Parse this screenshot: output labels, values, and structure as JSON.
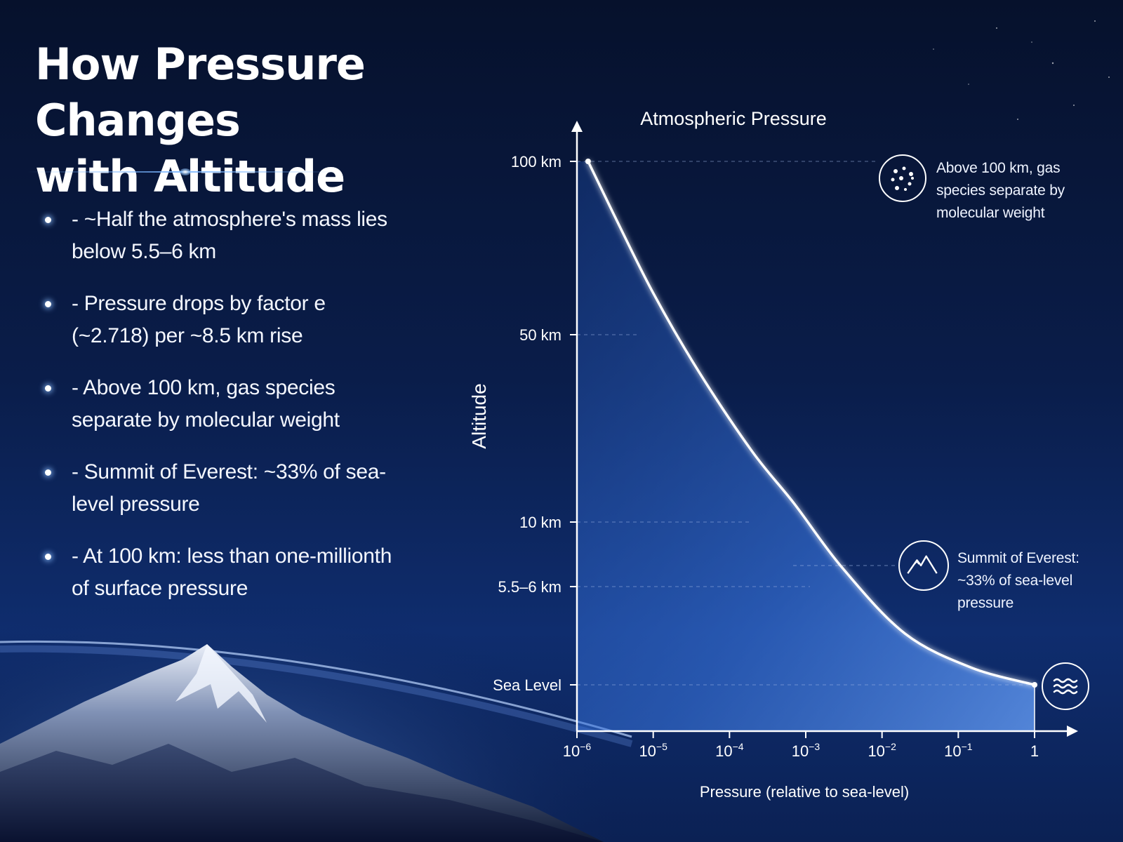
{
  "title": {
    "line1": "How Pressure Changes",
    "line2": "with Altitude"
  },
  "bullets": [
    "- ~Half the atmosphere's mass lies below 5.5–6 km",
    "- Pressure drops by factor e (~2.718) per ~8.5 km rise",
    "- Above 100 km, gas species separate by molecular weight",
    "- Summit of Everest: ~33% of sea-level pressure",
    "- At 100 km: less than one-millionth of surface pressure"
  ],
  "callouts": {
    "top": "Above 100 km, gas species separate by molecular weight",
    "everest": "Summit of Everest: ~33% of sea-level pressure"
  },
  "icons": {
    "top": "molecules-icon",
    "everest": "mountain-icon",
    "sea": "waves-icon"
  },
  "chart_data": {
    "type": "line",
    "title": "Atmospheric Pressure",
    "xlabel": "Pressure (relative to sea-level)",
    "ylabel": "Altitude",
    "x_scale": "log",
    "x_ticks": [
      {
        "value": 1e-06,
        "base": "10",
        "exp": "−6"
      },
      {
        "value": 1e-05,
        "base": "10",
        "exp": "−5"
      },
      {
        "value": 0.0001,
        "base": "10",
        "exp": "−4"
      },
      {
        "value": 0.001,
        "base": "10",
        "exp": "−3"
      },
      {
        "value": 0.01,
        "base": "10",
        "exp": "−2"
      },
      {
        "value": 0.1,
        "base": "10",
        "exp": "−1"
      },
      {
        "value": 1,
        "base": "1",
        "exp": ""
      }
    ],
    "y_ticks": [
      {
        "label": "100 km",
        "value": 100
      },
      {
        "label": "50 km",
        "value": 50
      },
      {
        "label": "10 km",
        "value": 10
      },
      {
        "label": "5.5–6 km",
        "value": 5.75
      },
      {
        "label": "Sea Level",
        "value": 0
      }
    ],
    "series": [
      {
        "points": [
          {
            "x": 1.4e-06,
            "y": 100
          },
          {
            "x": 3e-06,
            "y": 85
          },
          {
            "x": 1e-05,
            "y": 62
          },
          {
            "x": 4e-05,
            "y": 42
          },
          {
            "x": 0.0002,
            "y": 25
          },
          {
            "x": 0.0007,
            "y": 14
          },
          {
            "x": 0.003,
            "y": 7
          },
          {
            "x": 0.02,
            "y": 3
          },
          {
            "x": 0.15,
            "y": 1
          },
          {
            "x": 1,
            "y": 0
          }
        ]
      }
    ],
    "ylim": [
      0,
      100
    ],
    "fill": true,
    "colors": {
      "line": "#ffffff",
      "fill": "#3c7be8"
    }
  }
}
